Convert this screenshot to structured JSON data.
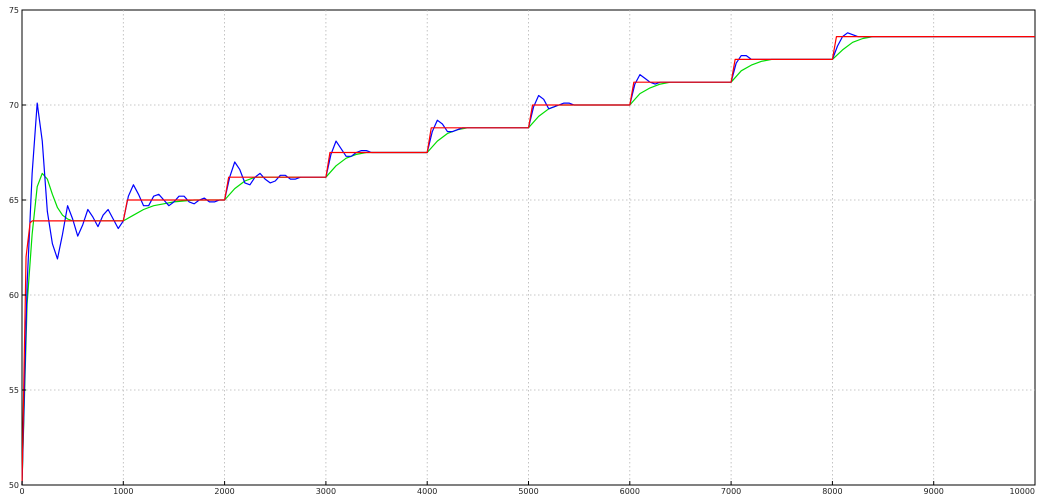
{
  "chart_data": {
    "type": "line",
    "title": "",
    "xlabel": "",
    "ylabel": "",
    "xlim": [
      0,
      10000
    ],
    "ylim": [
      50,
      75
    ],
    "grid": true,
    "legend": "none",
    "x_ticks": [
      0,
      1000,
      2000,
      3000,
      4000,
      5000,
      6000,
      7000,
      8000,
      9000,
      10000
    ],
    "x_tick_labels": [
      "0",
      "1000",
      "2000",
      "3000",
      "4000",
      "5000",
      "6000",
      "7000",
      "8000",
      "9000",
      "10000"
    ],
    "y_ticks": [
      50,
      55,
      60,
      65,
      70,
      75
    ],
    "y_tick_labels": [
      "50",
      "55",
      "60",
      "65",
      "70",
      "75"
    ],
    "series": [
      {
        "color": "#ff0000",
        "x": [
          0,
          40,
          80,
          100,
          999,
          1000,
          1040,
          1999,
          2000,
          2040,
          2999,
          3000,
          3040,
          3999,
          4000,
          4040,
          4999,
          5000,
          5040,
          5999,
          6000,
          6040,
          6999,
          7000,
          7040,
          7999,
          8000,
          8040,
          10000
        ],
        "y": [
          50,
          62,
          63.8,
          63.9,
          63.9,
          63.9,
          65,
          65,
          65,
          66.2,
          66.2,
          66.2,
          67.5,
          67.5,
          67.5,
          68.8,
          68.8,
          68.8,
          70,
          70,
          70,
          71.2,
          71.2,
          71.2,
          72.4,
          72.4,
          72.4,
          73.6,
          73.6
        ]
      },
      {
        "color": "#0000ff",
        "x": [
          0,
          50,
          100,
          150,
          200,
          250,
          300,
          350,
          400,
          450,
          500,
          550,
          600,
          650,
          700,
          750,
          800,
          850,
          900,
          950,
          1000,
          1050,
          1100,
          1150,
          1200,
          1250,
          1300,
          1350,
          1400,
          1450,
          1500,
          1550,
          1600,
          1650,
          1700,
          1750,
          1800,
          1850,
          1900,
          1950,
          2000,
          2050,
          2100,
          2150,
          2200,
          2250,
          2300,
          2350,
          2400,
          2450,
          2500,
          2550,
          2600,
          2650,
          2700,
          2750,
          2800,
          2850,
          2900,
          2950,
          3000,
          3050,
          3100,
          3150,
          3200,
          3250,
          3300,
          3350,
          3400,
          3450,
          3500,
          3550,
          3600,
          3650,
          3700,
          3750,
          3800,
          3850,
          3900,
          3950,
          4000,
          4050,
          4100,
          4150,
          4200,
          4250,
          4300,
          4350,
          4400,
          4450,
          4500,
          4550,
          4600,
          4650,
          4700,
          4750,
          4800,
          4850,
          4900,
          4950,
          5000,
          5050,
          5100,
          5150,
          5200,
          5250,
          5300,
          5350,
          5400,
          5450,
          5500,
          5550,
          5600,
          5650,
          5700,
          5750,
          5800,
          5850,
          5900,
          5950,
          6000,
          6050,
          6100,
          6150,
          6200,
          6250,
          6300,
          6350,
          6400,
          6450,
          6500,
          6550,
          6600,
          6650,
          6700,
          6750,
          6800,
          6850,
          6900,
          6950,
          7000,
          7050,
          7100,
          7150,
          7200,
          7250,
          7300,
          7350,
          7400,
          7450,
          7500,
          7550,
          7600,
          7650,
          7700,
          7750,
          7800,
          7850,
          7900,
          7950,
          8000,
          8050,
          8100,
          8150,
          8200,
          8250,
          8300,
          8350,
          8400,
          8450,
          8500,
          8550,
          8600,
          8650,
          8700,
          8750,
          8800,
          8850,
          8900,
          8950,
          9000,
          9050,
          9100,
          9150,
          9200,
          9250,
          9300,
          9350,
          9400,
          9450,
          9500,
          9550,
          9600,
          9650,
          9700,
          9750,
          9800,
          9850,
          9900,
          9950,
          10000
        ],
        "y": [
          50,
          60.5,
          66.4,
          70.1,
          68.1,
          64.4,
          62.7,
          61.9,
          63.2,
          64.7,
          64,
          63.1,
          63.7,
          64.5,
          64.1,
          63.6,
          64.2,
          64.5,
          64,
          63.5,
          63.9,
          65.2,
          65.8,
          65.3,
          64.7,
          64.7,
          65.2,
          65.3,
          65,
          64.7,
          64.9,
          65.2,
          65.2,
          64.9,
          64.8,
          65,
          65.1,
          64.9,
          64.9,
          65,
          65,
          66.2,
          67,
          66.6,
          65.9,
          65.8,
          66.2,
          66.4,
          66.1,
          65.9,
          66,
          66.3,
          66.3,
          66.1,
          66.1,
          66.2,
          66.2,
          66.2,
          66.2,
          66.2,
          66.2,
          67.4,
          68.1,
          67.7,
          67.3,
          67.3,
          67.5,
          67.6,
          67.6,
          67.5,
          67.5,
          67.5,
          67.5,
          67.5,
          67.5,
          67.5,
          67.5,
          67.5,
          67.5,
          67.5,
          67.5,
          68.6,
          69.2,
          69,
          68.6,
          68.6,
          68.7,
          68.8,
          68.8,
          68.8,
          68.8,
          68.8,
          68.8,
          68.8,
          68.8,
          68.8,
          68.8,
          68.8,
          68.8,
          68.8,
          68.8,
          69.9,
          70.5,
          70.3,
          69.8,
          69.9,
          70,
          70.1,
          70.1,
          70,
          70,
          70,
          70,
          70,
          70,
          70,
          70,
          70,
          70,
          70,
          70,
          71.1,
          71.6,
          71.4,
          71.2,
          71.1,
          71.2,
          71.2,
          71.2,
          71.2,
          71.2,
          71.2,
          71.2,
          71.2,
          71.2,
          71.2,
          71.2,
          71.2,
          71.2,
          71.2,
          71.2,
          72.2,
          72.6,
          72.6,
          72.4,
          72.4,
          72.4,
          72.4,
          72.4,
          72.4,
          72.4,
          72.4,
          72.4,
          72.4,
          72.4,
          72.4,
          72.4,
          72.4,
          72.4,
          72.4,
          72.4,
          73.1,
          73.6,
          73.8,
          73.7,
          73.6,
          73.6,
          73.6,
          73.6,
          73.6,
          73.6,
          73.6,
          73.6,
          73.6,
          73.6,
          73.6,
          73.6,
          73.6,
          73.6,
          73.6,
          73.6,
          73.6,
          73.6,
          73.6,
          73.6,
          73.6,
          73.6,
          73.6,
          73.6,
          73.6,
          73.6,
          73.6,
          73.6,
          73.6,
          73.6,
          73.6,
          73.6,
          73.6,
          73.6,
          73.6,
          73.6
        ]
      },
      {
        "color": "#00dd00",
        "x": [
          0,
          50,
          100,
          150,
          200,
          250,
          300,
          350,
          400,
          450,
          500,
          600,
          700,
          800,
          900,
          1000,
          1100,
          1200,
          1300,
          1400,
          1500,
          1700,
          2000,
          2100,
          2200,
          2300,
          2400,
          2600,
          3000,
          3100,
          3200,
          3300,
          3400,
          3600,
          4000,
          4100,
          4200,
          4300,
          4400,
          4600,
          5000,
          5100,
          5200,
          5300,
          5400,
          5600,
          6000,
          6100,
          6200,
          6300,
          6400,
          6600,
          7000,
          7100,
          7200,
          7300,
          7400,
          7600,
          8000,
          8100,
          8200,
          8300,
          8400,
          8600,
          10000
        ],
        "y": [
          50,
          59.5,
          63.2,
          65.7,
          66.4,
          66.1,
          65.3,
          64.6,
          64.2,
          64,
          63.9,
          63.9,
          63.9,
          63.9,
          63.9,
          63.9,
          64.2,
          64.5,
          64.7,
          64.8,
          64.9,
          65,
          65,
          65.6,
          66,
          66.2,
          66.2,
          66.2,
          66.2,
          66.8,
          67.2,
          67.4,
          67.5,
          67.5,
          67.5,
          68.1,
          68.5,
          68.7,
          68.8,
          68.8,
          68.8,
          69.4,
          69.8,
          70,
          70,
          70,
          70,
          70.6,
          70.9,
          71.1,
          71.2,
          71.2,
          71.2,
          71.8,
          72.1,
          72.3,
          72.4,
          72.4,
          72.4,
          72.9,
          73.3,
          73.5,
          73.6,
          73.6,
          73.6
        ]
      }
    ]
  }
}
